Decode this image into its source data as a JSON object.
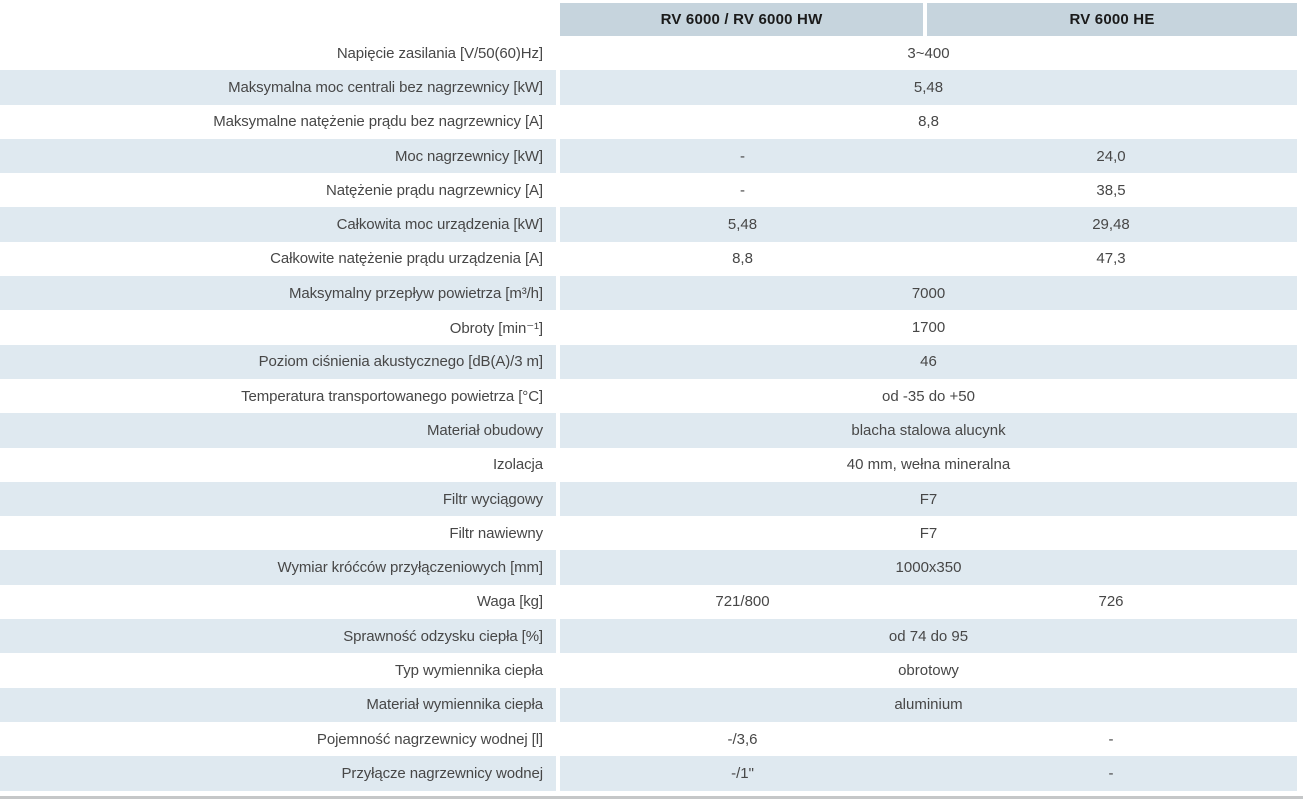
{
  "header": {
    "corner": "",
    "col1": "RV 6000 / RV 6000 HW",
    "col2": "RV 6000 HE"
  },
  "rows": [
    {
      "label": "Napięcie zasilania [V/50(60)Hz]",
      "span": "3~400"
    },
    {
      "label": "Maksymalna moc centrali bez nagrzewnicy [kW]",
      "span": "5,48"
    },
    {
      "label": "Maksymalne natężenie prądu bez nagrzewnicy [A]",
      "span": "8,8"
    },
    {
      "label": "Moc nagrzewnicy [kW]",
      "col1": "-",
      "col2": "24,0"
    },
    {
      "label": "Natężenie prądu nagrzewnicy [A]",
      "col1": "-",
      "col2": "38,5"
    },
    {
      "label": "Całkowita moc urządzenia [kW]",
      "col1": "5,48",
      "col2": "29,48"
    },
    {
      "label": "Całkowite natężenie prądu urządzenia [A]",
      "col1": "8,8",
      "col2": "47,3"
    },
    {
      "label": "Maksymalny przepływ powietrza [m³/h]",
      "span": "7000"
    },
    {
      "label": "Obroty [min⁻¹]",
      "span": "1700"
    },
    {
      "label": "Poziom ciśnienia akustycznego  [dB(A)/3 m]",
      "span": "46"
    },
    {
      "label": "Temperatura transportowanego powietrza [°C]",
      "span": "od -35 do +50"
    },
    {
      "label": "Materiał obudowy",
      "span": "blacha stalowa alucynk"
    },
    {
      "label": "Izolacja",
      "span": "40 mm, wełna mineralna"
    },
    {
      "label": "Filtr wyciągowy",
      "span": "F7"
    },
    {
      "label": "Filtr nawiewny",
      "span": "F7"
    },
    {
      "label": "Wymiar króćców przyłączeniowych [mm]",
      "span": "1000x350"
    },
    {
      "label": "Waga [kg]",
      "col1": "721/800",
      "col2": "726"
    },
    {
      "label": "Sprawność odzysku ciepła [%]",
      "span": "od 74 do 95"
    },
    {
      "label": "Typ wymiennika ciepła",
      "span": "obrotowy"
    },
    {
      "label": "Materiał wymiennika ciepła",
      "span": "aluminium"
    },
    {
      "label": "Pojemność nagrzewnicy wodnej [l]",
      "col1": "-/3,6",
      "col2": "-"
    },
    {
      "label": "Przyłącze nagrzewnicy wodnej",
      "col1": "-/1\"",
      "col2": "-"
    }
  ],
  "colors": {
    "header_bg": "#c6d4dd",
    "stripe_bg": "#dfe9f0",
    "text": "#474747",
    "header_text": "#1a1a1a",
    "bottom_bar": "#c5c7c8"
  }
}
